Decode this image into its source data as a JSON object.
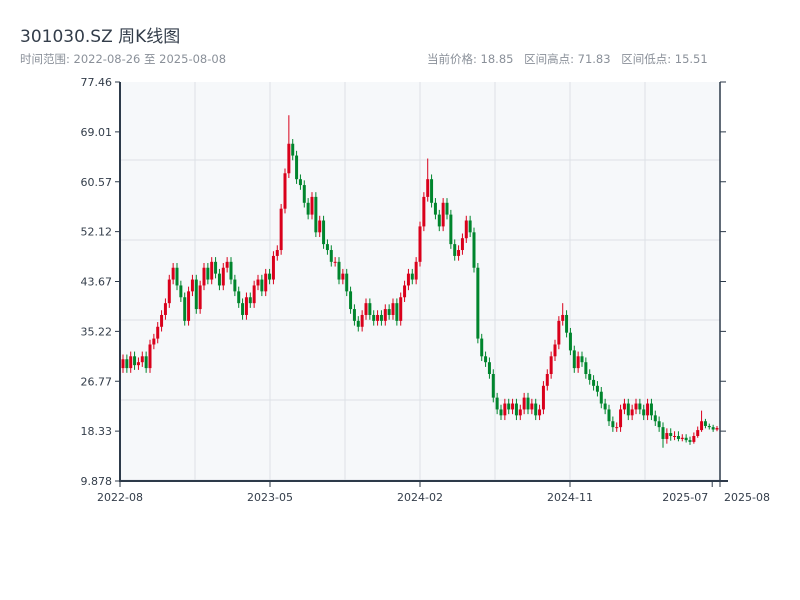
{
  "header": {
    "title": "301030.SZ 周K线图",
    "range": "时间范围: 2022-08-26 至 2025-08-08",
    "current": "当前价格: 18.85",
    "high": "区间高点: 71.83",
    "low": "区间低点: 15.51"
  },
  "colors": {
    "up": "#d9001b",
    "down": "#00852d",
    "plot_bg": "#f6f8fa",
    "axis": "#2d3a4a",
    "grid": "#dde1e6"
  },
  "chart_data": {
    "type": "candlestick",
    "title": "301030.SZ 周K线图",
    "ylim": [
      9.878,
      77.46
    ],
    "yticks": [
      "77.46",
      "69.01",
      "60.57",
      "52.12",
      "43.67",
      "35.22",
      "26.77",
      "18.33",
      "9.878"
    ],
    "xticks": [
      {
        "label": "2022-08",
        "index": 0
      },
      {
        "label": "2023-05",
        "index": 38.5
      },
      {
        "label": "2024-02",
        "index": 77
      },
      {
        "label": "2024-11",
        "index": 115.5
      },
      {
        "label": "2025-07",
        "index": 152
      },
      {
        "label": "2025-08",
        "index": 154
      }
    ],
    "grid": true,
    "open": [
      29,
      30.5,
      29,
      31,
      29.5,
      30,
      31,
      29,
      33,
      34,
      36,
      38,
      40,
      44,
      46,
      43,
      41,
      37,
      42,
      44,
      39,
      43,
      46,
      44,
      47,
      45,
      43,
      46,
      47,
      44,
      42,
      40,
      38,
      41,
      40,
      43,
      44,
      42,
      45,
      44,
      48,
      49,
      56,
      62,
      67,
      65,
      61,
      60,
      57,
      55,
      58,
      52,
      54,
      50,
      49,
      47,
      47,
      44,
      45,
      42,
      39,
      37,
      36,
      38,
      40,
      38,
      37,
      38,
      37,
      39,
      38,
      40,
      37,
      41,
      43,
      45,
      44,
      47,
      53,
      58,
      61,
      57,
      55,
      53,
      57,
      55,
      50,
      48,
      49,
      51,
      54,
      52,
      46,
      34,
      31,
      30,
      28,
      24,
      22,
      21,
      23,
      22,
      23,
      21,
      22,
      24,
      22,
      23,
      21,
      22,
      26,
      28,
      31,
      33,
      37,
      38,
      35,
      32,
      29,
      31,
      30,
      28,
      27,
      26,
      25,
      23,
      22,
      20,
      19,
      19,
      22,
      23,
      21,
      22,
      23,
      22,
      21,
      23,
      21,
      20,
      19,
      17,
      18,
      17.5,
      17.5,
      17,
      17.2,
      16.8,
      16.5,
      17.5,
      18.5,
      20,
      19.2,
      19,
      18.6
    ],
    "high": [
      31.3,
      31.3,
      31.8,
      31.8,
      30.8,
      31.8,
      31.8,
      33.8,
      34.8,
      36.8,
      38.8,
      40.8,
      44.8,
      46.8,
      46.8,
      43.8,
      41.8,
      42.8,
      44.8,
      44.8,
      43.8,
      46.8,
      46.8,
      47.8,
      47.8,
      45.8,
      46.8,
      47.8,
      47.8,
      44.8,
      42.8,
      40.8,
      41.8,
      41.8,
      43.8,
      44.8,
      44.8,
      45.8,
      45.8,
      48.8,
      49.8,
      56.8,
      62.8,
      71.83,
      67.8,
      65.8,
      61.8,
      60.8,
      57.8,
      58.8,
      58.8,
      54.8,
      54.8,
      50.8,
      49.8,
      47.8,
      47.8,
      45.8,
      45.8,
      42.8,
      39.8,
      37.8,
      38.8,
      40.8,
      40.8,
      38.8,
      38.8,
      38.8,
      39.8,
      39.8,
      40.8,
      40.8,
      41.8,
      43.8,
      45.8,
      45.8,
      47.8,
      53.8,
      58.8,
      64.5,
      61.8,
      57.8,
      55.8,
      57.8,
      57.8,
      55.8,
      50.8,
      49.8,
      51.8,
      54.8,
      54.8,
      52.8,
      46.8,
      34.8,
      31.8,
      30.8,
      28.8,
      24.8,
      22.8,
      23.8,
      23.8,
      23.8,
      23.8,
      22.8,
      24.8,
      24.8,
      23.8,
      23.8,
      22.8,
      26.8,
      28.8,
      31.8,
      33.8,
      37.8,
      40,
      38.8,
      35.8,
      32.8,
      31.8,
      31.8,
      30.8,
      28.8,
      27.8,
      26.8,
      25.8,
      23.8,
      22.8,
      20.8,
      19.8,
      22.8,
      23.8,
      23.8,
      22.8,
      23.8,
      23.8,
      22.8,
      23.8,
      23.8,
      21.8,
      20.8,
      19.8,
      18.8,
      18.8,
      18.3,
      18.3,
      17.8,
      17.8,
      17.4,
      18.1,
      19.1,
      21.8,
      20.4,
      19.6,
      19.4,
      19.2
    ],
    "low": [
      28.2,
      28.2,
      28.2,
      28.7,
      28.7,
      29.2,
      28.2,
      28.2,
      32.2,
      33.2,
      35.2,
      37.2,
      39.2,
      43.2,
      42.2,
      40.2,
      36.2,
      36.2,
      41.2,
      38.2,
      38.2,
      42.2,
      43.2,
      43.2,
      44.2,
      42.2,
      42.2,
      45.2,
      43.2,
      41.2,
      39.2,
      37.2,
      37.2,
      39.2,
      39.2,
      42.2,
      41.2,
      41.2,
      43.2,
      43.2,
      47.2,
      48.2,
      55.2,
      61.2,
      64.2,
      60.2,
      59.2,
      56.2,
      54.2,
      54.2,
      51.2,
      51.2,
      49.2,
      48.2,
      46.2,
      46.2,
      43.2,
      43.2,
      41.2,
      38.2,
      36.2,
      35.2,
      35.2,
      37.2,
      37.2,
      36.2,
      36.2,
      36.2,
      36.2,
      37.2,
      37.2,
      36.2,
      36.2,
      40.2,
      42.2,
      43.2,
      43.2,
      46.2,
      52.2,
      57.2,
      56.2,
      54.2,
      52.2,
      52.2,
      54.2,
      49.2,
      47.2,
      47.2,
      48.2,
      50.2,
      51.2,
      45.2,
      33.2,
      30.2,
      29.2,
      27.2,
      23.2,
      21.2,
      20.2,
      20.2,
      21.2,
      21.2,
      20.2,
      20.2,
      21.2,
      21.2,
      21.2,
      20.2,
      20.2,
      21.2,
      25.2,
      27.2,
      30.2,
      32.2,
      36.2,
      34.2,
      31.2,
      28.2,
      28.2,
      29.2,
      27.2,
      26.2,
      25.2,
      24.2,
      22.2,
      21.2,
      19.2,
      18.2,
      18.2,
      18.2,
      21.2,
      20.2,
      20.2,
      21.2,
      21.2,
      20.2,
      20.2,
      20.2,
      19.2,
      18.2,
      15.51,
      16.2,
      16.7,
      16.8,
      16.6,
      16.6,
      16.4,
      16.0,
      16.2,
      17.2,
      18.2,
      18.8,
      18.6,
      18.2,
      18.3
    ],
    "close": [
      30.5,
      29,
      31,
      29.5,
      30,
      31,
      29,
      33,
      34,
      36,
      38,
      40,
      44,
      46,
      43,
      41,
      37,
      42,
      44,
      39,
      43,
      46,
      44,
      47,
      45,
      43,
      46,
      47,
      44,
      42,
      40,
      38,
      41,
      40,
      43,
      44,
      42,
      45,
      44,
      48,
      49,
      56,
      62,
      67,
      65,
      61,
      60,
      57,
      55,
      58,
      52,
      54,
      50,
      49,
      47,
      47,
      44,
      45,
      42,
      39,
      37,
      36,
      38,
      40,
      38,
      37,
      38,
      37,
      39,
      38,
      40,
      37,
      41,
      43,
      45,
      44,
      47,
      53,
      58,
      61,
      57,
      55,
      53,
      57,
      55,
      50,
      48,
      49,
      51,
      54,
      52,
      46,
      34,
      31,
      30,
      28,
      24,
      22,
      21,
      23,
      22,
      23,
      21,
      22,
      24,
      22,
      23,
      21,
      22,
      26,
      28,
      31,
      33,
      37,
      38,
      35,
      32,
      29,
      31,
      30,
      28,
      27,
      26,
      25,
      23,
      22,
      20,
      19,
      19,
      22,
      23,
      21,
      22,
      23,
      22,
      21,
      23,
      21,
      20,
      19,
      17,
      18,
      17.5,
      17.5,
      17,
      17.2,
      16.8,
      16.5,
      17.5,
      18.5,
      20,
      19.2,
      19,
      18.6,
      18.85
    ]
  }
}
